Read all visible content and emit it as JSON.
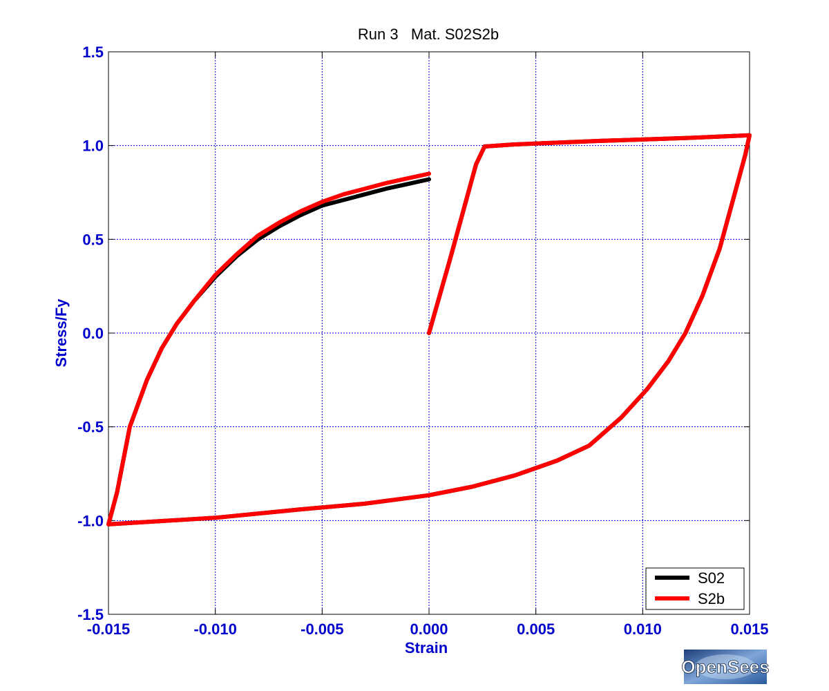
{
  "chart_data": {
    "type": "line",
    "title": "Run 3   Mat. S02S2b",
    "xlabel": "Strain",
    "ylabel": "Stress/Fy",
    "xlim": [
      -0.015,
      0.015
    ],
    "ylim": [
      -1.5,
      1.5
    ],
    "x_ticks": [
      -0.015,
      -0.01,
      -0.005,
      0.0,
      0.005,
      0.01,
      0.015
    ],
    "x_tick_labels": [
      "-0.015",
      "-0.010",
      "-0.005",
      "0.000",
      "0.005",
      "0.010",
      "0.015"
    ],
    "y_ticks": [
      -1.5,
      -1.0,
      -0.5,
      0.0,
      0.5,
      1.0,
      1.5
    ],
    "y_tick_labels": [
      "-1.5",
      "-1.0",
      "-0.5",
      "0.0",
      "0.5",
      "1.0",
      "1.5"
    ],
    "grid": true,
    "legend_position": "bottom-right",
    "colors": {
      "axis_text": "#0000cc",
      "grid": "#0000cc",
      "frame": "#000000"
    },
    "series": [
      {
        "name": "S02",
        "color": "#000000",
        "points": [
          [
            0.0,
            0.0
          ],
          [
            0.001,
            0.4
          ],
          [
            0.0022,
            0.9
          ],
          [
            0.0026,
            0.995
          ],
          [
            0.004,
            1.006
          ],
          [
            0.008,
            1.025
          ],
          [
            0.012,
            1.04
          ],
          [
            0.015,
            1.055
          ],
          [
            0.0148,
            0.95
          ],
          [
            0.0142,
            0.7
          ],
          [
            0.0136,
            0.45
          ],
          [
            0.0128,
            0.2
          ],
          [
            0.012,
            0.0
          ],
          [
            0.0112,
            -0.15
          ],
          [
            0.0102,
            -0.3
          ],
          [
            0.009,
            -0.45
          ],
          [
            0.0075,
            -0.6
          ],
          [
            0.006,
            -0.68
          ],
          [
            0.004,
            -0.76
          ],
          [
            0.002,
            -0.82
          ],
          [
            0.0,
            -0.865
          ],
          [
            -0.003,
            -0.91
          ],
          [
            -0.006,
            -0.94
          ],
          [
            -0.01,
            -0.985
          ],
          [
            -0.015,
            -1.02
          ],
          [
            -0.0146,
            -0.85
          ],
          [
            -0.014,
            -0.5
          ],
          [
            -0.0132,
            -0.25
          ],
          [
            -0.0125,
            -0.08
          ],
          [
            -0.0118,
            0.05
          ],
          [
            -0.011,
            0.17
          ],
          [
            -0.01,
            0.3
          ],
          [
            -0.009,
            0.41
          ],
          [
            -0.008,
            0.5
          ],
          [
            -0.007,
            0.57
          ],
          [
            -0.006,
            0.63
          ],
          [
            -0.005,
            0.68
          ],
          [
            -0.004,
            0.71
          ],
          [
            -0.003,
            0.74
          ],
          [
            -0.002,
            0.77
          ],
          [
            -0.001,
            0.795
          ],
          [
            0.0,
            0.82
          ]
        ]
      },
      {
        "name": "S2b",
        "color": "#ff0000",
        "points": [
          [
            0.0,
            0.0
          ],
          [
            0.001,
            0.4
          ],
          [
            0.0022,
            0.9
          ],
          [
            0.0026,
            0.995
          ],
          [
            0.004,
            1.006
          ],
          [
            0.008,
            1.025
          ],
          [
            0.012,
            1.04
          ],
          [
            0.015,
            1.055
          ],
          [
            0.0148,
            0.95
          ],
          [
            0.0142,
            0.7
          ],
          [
            0.0136,
            0.45
          ],
          [
            0.0128,
            0.2
          ],
          [
            0.012,
            0.0
          ],
          [
            0.0112,
            -0.15
          ],
          [
            0.0102,
            -0.3
          ],
          [
            0.009,
            -0.45
          ],
          [
            0.0075,
            -0.6
          ],
          [
            0.006,
            -0.68
          ],
          [
            0.004,
            -0.76
          ],
          [
            0.002,
            -0.82
          ],
          [
            0.0,
            -0.865
          ],
          [
            -0.003,
            -0.91
          ],
          [
            -0.006,
            -0.94
          ],
          [
            -0.01,
            -0.985
          ],
          [
            -0.015,
            -1.02
          ],
          [
            -0.0146,
            -0.85
          ],
          [
            -0.014,
            -0.5
          ],
          [
            -0.0132,
            -0.25
          ],
          [
            -0.0125,
            -0.08
          ],
          [
            -0.0118,
            0.05
          ],
          [
            -0.011,
            0.17
          ],
          [
            -0.01,
            0.31
          ],
          [
            -0.009,
            0.42
          ],
          [
            -0.008,
            0.52
          ],
          [
            -0.007,
            0.59
          ],
          [
            -0.006,
            0.65
          ],
          [
            -0.005,
            0.7
          ],
          [
            -0.004,
            0.74
          ],
          [
            -0.003,
            0.77
          ],
          [
            -0.002,
            0.8
          ],
          [
            -0.001,
            0.825
          ],
          [
            0.0,
            0.85
          ]
        ]
      }
    ]
  },
  "logo": {
    "text": "OpenSees"
  }
}
